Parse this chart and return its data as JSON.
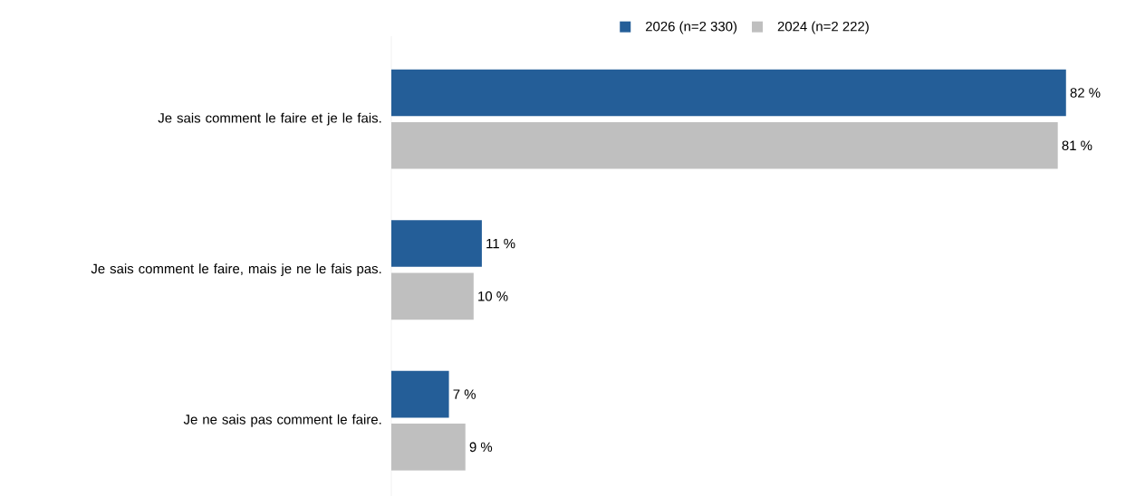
{
  "chart_data": {
    "type": "bar",
    "orientation": "horizontal",
    "categories": [
      "Je sais comment le faire et je le fais.",
      "Je sais comment le faire, mais je ne le fais pas.",
      "Je ne sais pas comment le faire."
    ],
    "series": [
      {
        "name": "2026 (n=2 330)",
        "color": "#245e98",
        "values": [
          82,
          11,
          7
        ],
        "value_labels": [
          "82 %",
          "11 %",
          "7 %"
        ]
      },
      {
        "name": "2024 (n=2 222)",
        "color": "#bfbfbf",
        "values": [
          81,
          10,
          9
        ],
        "value_labels": [
          "81 %",
          "10 %",
          "9 %"
        ]
      }
    ],
    "tick_labels": "y",
    "legend": "top"
  }
}
